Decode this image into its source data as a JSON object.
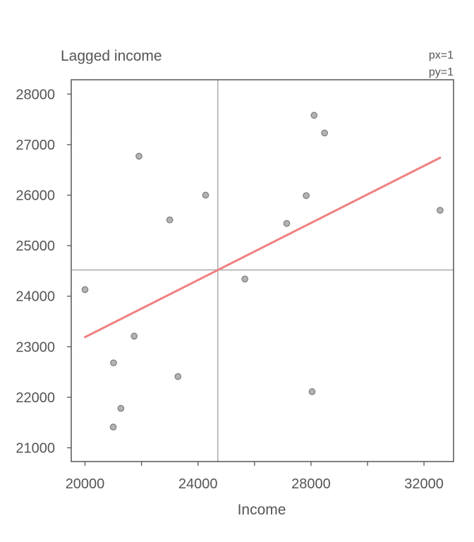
{
  "chart_data": {
    "type": "scatter",
    "title": "",
    "xlabel": "Income",
    "ylabel": "Lagged income",
    "annotations": [
      "px=1",
      "py=1"
    ],
    "xlim": [
      19500,
      33000
    ],
    "ylim": [
      20700,
      28250
    ],
    "xticks": [
      20000,
      22000,
      24000,
      26000,
      28000,
      30000,
      32000
    ],
    "xtick_labels": [
      "20000",
      "",
      "24000",
      "",
      "28000",
      "",
      "32000"
    ],
    "yticks": [
      21000,
      22000,
      23000,
      24000,
      25000,
      26000,
      27000,
      28000
    ],
    "ytick_labels": [
      "21000",
      "22000",
      "23000",
      "24000",
      "25000",
      "26000",
      "27000",
      "28000"
    ],
    "points": [
      {
        "x": 20000,
        "y": 24130
      },
      {
        "x": 21000,
        "y": 21410
      },
      {
        "x": 21010,
        "y": 22680
      },
      {
        "x": 21270,
        "y": 21780
      },
      {
        "x": 21740,
        "y": 23210
      },
      {
        "x": 21910,
        "y": 26770
      },
      {
        "x": 23000,
        "y": 25510
      },
      {
        "x": 23290,
        "y": 22410
      },
      {
        "x": 24270,
        "y": 26000
      },
      {
        "x": 25660,
        "y": 24340
      },
      {
        "x": 27140,
        "y": 25440
      },
      {
        "x": 27830,
        "y": 25990
      },
      {
        "x": 28040,
        "y": 22110
      },
      {
        "x": 28110,
        "y": 27580
      },
      {
        "x": 28480,
        "y": 27230
      },
      {
        "x": 32570,
        "y": 25700
      }
    ],
    "mean_x": 24700,
    "mean_y": 24520,
    "regression_line": {
      "x": [
        20000,
        32570
      ],
      "y": [
        23190,
        26740
      ]
    },
    "grid": false,
    "colors": {
      "points": "#b3b3b3",
      "point_edge": "#808080",
      "regression": "#f08080",
      "mean_lines": "#aaaaaa",
      "axes": "#555555"
    }
  }
}
